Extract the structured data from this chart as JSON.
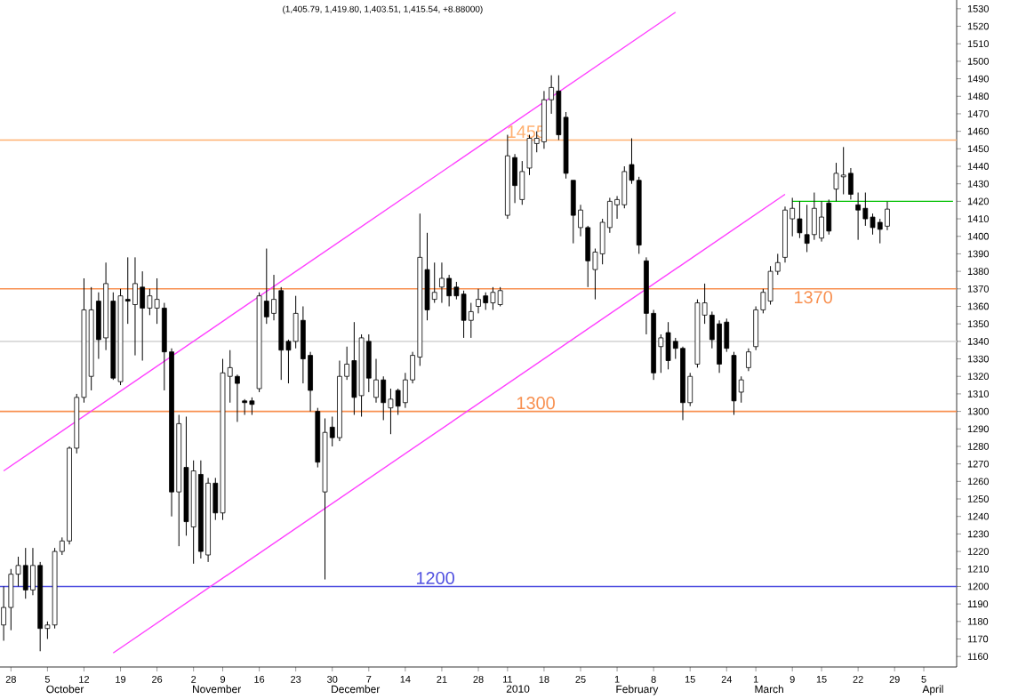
{
  "chart_data": {
    "type": "candlestick",
    "subtitle": "(1,405.79, 1,419.80, 1,403.51, 1,415.54, +8.88000)",
    "categories": [
      null,
      "28",
      null,
      null,
      null,
      null,
      "5",
      null,
      null,
      null,
      null,
      "12",
      null,
      null,
      null,
      null,
      "19",
      null,
      null,
      null,
      null,
      "26",
      null,
      null,
      null,
      null,
      "2",
      null,
      null,
      null,
      "9",
      null,
      null,
      null,
      null,
      "16",
      null,
      null,
      null,
      null,
      "23",
      null,
      null,
      null,
      null,
      "30",
      null,
      null,
      null,
      null,
      "7",
      null,
      null,
      null,
      null,
      "14",
      null,
      null,
      null,
      null,
      "21",
      null,
      null,
      null,
      null,
      "28",
      null,
      null,
      null,
      "11",
      null,
      null,
      null,
      null,
      "18",
      null,
      null,
      null,
      null,
      "25",
      null,
      null,
      null,
      null,
      "1",
      null,
      null,
      null,
      null,
      "8",
      null,
      null,
      null,
      null,
      "15",
      null,
      null,
      null,
      null,
      "24",
      null,
      null,
      null,
      "1",
      null,
      null,
      null,
      null,
      "9",
      null,
      null,
      null,
      "15",
      null,
      null,
      null,
      null,
      "22",
      null,
      null,
      null,
      null,
      "29",
      null,
      null,
      null,
      "5",
      null,
      null,
      null,
      null
    ],
    "ohlc": [
      [
        1178,
        1200,
        1169,
        1188
      ],
      [
        1188,
        1210,
        1175,
        1207
      ],
      [
        1207,
        1217,
        1200,
        1212
      ],
      [
        1212,
        1222,
        1193,
        1198
      ],
      [
        1198,
        1222,
        1195,
        1212
      ],
      [
        1212,
        1214,
        1163,
        1176
      ],
      [
        1176,
        1180,
        1170,
        1178
      ],
      [
        1178,
        1222,
        1176,
        1220
      ],
      [
        1220,
        1228,
        1218,
        1226
      ],
      [
        1226,
        1280,
        1224,
        1279
      ],
      [
        1279,
        1310,
        1276,
        1308
      ],
      [
        1308,
        1376,
        1305,
        1358
      ],
      [
        1320,
        1371,
        1312,
        1358
      ],
      [
        1363,
        1368,
        1330,
        1341
      ],
      [
        1342,
        1385,
        1335,
        1373
      ],
      [
        1363,
        1368,
        1318,
        1319
      ],
      [
        1317,
        1370,
        1315,
        1366
      ],
      [
        1364,
        1388,
        1350,
        1363
      ],
      [
        1361,
        1388,
        1332,
        1373
      ],
      [
        1371,
        1380,
        1329,
        1359
      ],
      [
        1359,
        1370,
        1355,
        1366
      ],
      [
        1359,
        1376,
        1350,
        1364
      ],
      [
        1359,
        1362,
        1312,
        1334
      ],
      [
        1334,
        1336,
        1240,
        1254
      ],
      [
        1254,
        1298,
        1223,
        1293
      ],
      [
        1268,
        1297,
        1229,
        1237
      ],
      [
        1234,
        1272,
        1213,
        1266
      ],
      [
        1264,
        1272,
        1216,
        1220
      ],
      [
        1218,
        1262,
        1214,
        1259
      ],
      [
        1259,
        1262,
        1238,
        1242
      ],
      [
        1242,
        1330,
        1238,
        1322
      ],
      [
        1320,
        1335,
        1305,
        1325
      ],
      [
        1320,
        1321,
        1294,
        1316
      ],
      [
        1306,
        1307,
        1298,
        1305
      ],
      [
        1306,
        1308,
        1298,
        1304
      ],
      [
        1313,
        1368,
        1311,
        1366
      ],
      [
        1363,
        1393,
        1350,
        1354
      ],
      [
        1356,
        1378,
        1352,
        1364
      ],
      [
        1369,
        1371,
        1318,
        1335
      ],
      [
        1340,
        1341,
        1316,
        1335
      ],
      [
        1340,
        1366,
        1336,
        1356
      ],
      [
        1352,
        1360,
        1316,
        1330
      ],
      [
        1332,
        1334,
        1300,
        1312
      ],
      [
        1300,
        1302,
        1268,
        1271
      ],
      [
        1254,
        1296,
        1204,
        1288
      ],
      [
        1291,
        1297,
        1280,
        1285
      ],
      [
        1285,
        1329,
        1283,
        1320
      ],
      [
        1320,
        1337,
        1318,
        1327
      ],
      [
        1329,
        1351,
        1298,
        1308
      ],
      [
        1309,
        1344,
        1297,
        1342
      ],
      [
        1340,
        1344,
        1311,
        1319
      ],
      [
        1308,
        1330,
        1305,
        1318
      ],
      [
        1318,
        1320,
        1295,
        1305
      ],
      [
        1302,
        1313,
        1287,
        1307
      ],
      [
        1312,
        1313,
        1298,
        1303
      ],
      [
        1305,
        1322,
        1302,
        1318
      ],
      [
        1318,
        1334,
        1316,
        1332
      ],
      [
        1331,
        1413,
        1326,
        1388
      ],
      [
        1381,
        1402,
        1352,
        1358
      ],
      [
        1364,
        1385,
        1362,
        1368
      ],
      [
        1371,
        1385,
        1362,
        1376
      ],
      [
        1376,
        1378,
        1360,
        1366
      ],
      [
        1371,
        1374,
        1364,
        1366
      ],
      [
        1367,
        1369,
        1342,
        1352
      ],
      [
        1352,
        1362,
        1342,
        1357
      ],
      [
        1360,
        1370,
        1356,
        1364
      ],
      [
        1366,
        1368,
        1358,
        1362
      ],
      [
        1362,
        1371,
        1358,
        1368
      ],
      [
        1361,
        1371,
        1360,
        1369
      ],
      [
        1412,
        1458,
        1410,
        1446
      ],
      [
        1445,
        1447,
        1419,
        1429
      ],
      [
        1421,
        1443,
        1418,
        1437
      ],
      [
        1439,
        1458,
        1435,
        1456
      ],
      [
        1453,
        1460,
        1448,
        1456
      ],
      [
        1454,
        1483,
        1450,
        1478
      ],
      [
        1478,
        1492,
        1470,
        1485
      ],
      [
        1483,
        1492,
        1455,
        1458
      ],
      [
        1468,
        1471,
        1433,
        1436
      ],
      [
        1432,
        1432,
        1396,
        1412
      ],
      [
        1405,
        1418,
        1400,
        1415
      ],
      [
        1405,
        1406,
        1371,
        1386
      ],
      [
        1381,
        1393,
        1364,
        1391
      ],
      [
        1390,
        1410,
        1384,
        1408
      ],
      [
        1405,
        1422,
        1402,
        1420
      ],
      [
        1418,
        1423,
        1410,
        1421
      ],
      [
        1418,
        1440,
        1416,
        1437
      ],
      [
        1441,
        1456,
        1430,
        1432
      ],
      [
        1432,
        1434,
        1390,
        1395
      ],
      [
        1386,
        1388,
        1344,
        1356
      ],
      [
        1356,
        1358,
        1318,
        1322
      ],
      [
        1337,
        1344,
        1322,
        1342
      ],
      [
        1345,
        1351,
        1324,
        1329
      ],
      [
        1340,
        1342,
        1330,
        1336
      ],
      [
        1336,
        1337,
        1295,
        1305
      ],
      [
        1305,
        1322,
        1303,
        1320
      ],
      [
        1327,
        1364,
        1325,
        1362
      ],
      [
        1355,
        1373,
        1350,
        1362
      ],
      [
        1355,
        1357,
        1336,
        1341
      ],
      [
        1350,
        1352,
        1322,
        1327
      ],
      [
        1351,
        1353,
        1334,
        1336
      ],
      [
        1332,
        1334,
        1298,
        1306
      ],
      [
        1311,
        1320,
        1305,
        1318
      ],
      [
        1325,
        1336,
        1323,
        1334
      ],
      [
        1337,
        1360,
        1335,
        1358
      ],
      [
        1358,
        1370,
        1356,
        1368
      ],
      [
        1363,
        1383,
        1361,
        1380
      ],
      [
        1380,
        1390,
        1378,
        1385
      ],
      [
        1388,
        1417,
        1385,
        1415
      ],
      [
        1410,
        1422,
        1400,
        1416
      ],
      [
        1410,
        1420,
        1399,
        1402
      ],
      [
        1401,
        1418,
        1391,
        1396
      ],
      [
        1401,
        1425,
        1398,
        1416
      ],
      [
        1399,
        1420,
        1397,
        1411
      ],
      [
        1419,
        1421,
        1401,
        1403
      ],
      [
        1427,
        1442,
        1420,
        1436
      ],
      [
        1434,
        1451,
        1424,
        1435
      ],
      [
        1436,
        1439,
        1421,
        1424
      ],
      [
        1418,
        1425,
        1398,
        1415
      ],
      [
        1416,
        1425,
        1406,
        1410
      ],
      [
        1411,
        1413,
        1401,
        1405
      ],
      [
        1408,
        1410,
        1396,
        1404
      ],
      [
        1405.79,
        1419.8,
        1403.51,
        1415.54
      ],
      null,
      null,
      null,
      null,
      null,
      null,
      null,
      null,
      null
    ],
    "series": [
      {
        "type": "line",
        "color": "#ff40ff",
        "values": [
          1266,
          null,
          null,
          null,
          null,
          null,
          null,
          null,
          null,
          null,
          null,
          null,
          null,
          null,
          null,
          null,
          null,
          null,
          null,
          null,
          null,
          null,
          null,
          null,
          null,
          null,
          null,
          null,
          null,
          null,
          null,
          null,
          null,
          null,
          null,
          null,
          null,
          null,
          null,
          null,
          null,
          null,
          null,
          null,
          null,
          null,
          null,
          null,
          null,
          null,
          null,
          null,
          null,
          null,
          null,
          null,
          null,
          null,
          null,
          null,
          null,
          null,
          null,
          null,
          null,
          null,
          null,
          null,
          null,
          null,
          null,
          null,
          null,
          null,
          null,
          null,
          null,
          null,
          null,
          null,
          null,
          null,
          null,
          null,
          null,
          null,
          null,
          null,
          null,
          null,
          null,
          null,
          1528,
          null,
          null,
          null,
          null,
          null,
          null,
          null,
          null,
          null,
          null,
          null,
          null,
          null,
          null,
          null,
          null,
          null,
          null,
          null,
          null,
          null,
          null,
          null,
          null,
          null,
          null,
          null,
          null,
          null,
          null,
          null,
          null,
          null,
          null,
          null,
          null,
          null,
          null
        ]
      },
      {
        "type": "line",
        "color": "#ff40ff",
        "values": [
          null,
          null,
          null,
          null,
          null,
          null,
          null,
          null,
          null,
          null,
          null,
          null,
          null,
          null,
          null,
          1162,
          null,
          null,
          null,
          null,
          null,
          null,
          null,
          null,
          null,
          null,
          null,
          null,
          null,
          null,
          null,
          null,
          null,
          null,
          null,
          null,
          null,
          null,
          null,
          null,
          null,
          null,
          null,
          null,
          null,
          null,
          null,
          null,
          null,
          null,
          null,
          null,
          null,
          null,
          null,
          null,
          null,
          null,
          null,
          null,
          null,
          null,
          null,
          null,
          null,
          null,
          null,
          null,
          null,
          null,
          null,
          null,
          null,
          null,
          null,
          null,
          null,
          null,
          null,
          null,
          null,
          null,
          null,
          null,
          null,
          null,
          null,
          null,
          null,
          null,
          null,
          null,
          null,
          null,
          null,
          null,
          null,
          null,
          null,
          null,
          null,
          null,
          null,
          null,
          null,
          null,
          null,
          1424,
          null,
          null,
          null,
          null,
          null,
          null,
          null,
          null,
          null,
          null,
          null,
          null,
          null,
          null,
          null,
          null,
          null,
          null,
          null,
          null,
          null,
          null,
          null
        ]
      },
      {
        "type": "line",
        "color": "#00c000",
        "values": [
          null,
          null,
          null,
          null,
          null,
          null,
          null,
          null,
          null,
          null,
          null,
          null,
          null,
          null,
          null,
          null,
          null,
          null,
          null,
          null,
          null,
          null,
          null,
          null,
          null,
          null,
          null,
          null,
          null,
          null,
          null,
          null,
          null,
          null,
          null,
          null,
          null,
          null,
          null,
          null,
          null,
          null,
          null,
          null,
          null,
          null,
          null,
          null,
          null,
          null,
          null,
          null,
          null,
          null,
          null,
          null,
          null,
          null,
          null,
          null,
          null,
          null,
          null,
          null,
          null,
          null,
          null,
          null,
          null,
          null,
          null,
          null,
          null,
          null,
          null,
          null,
          null,
          null,
          null,
          null,
          null,
          null,
          null,
          null,
          null,
          null,
          null,
          null,
          null,
          null,
          null,
          null,
          null,
          null,
          null,
          null,
          null,
          null,
          null,
          null,
          null,
          null,
          null,
          null,
          null,
          null,
          null,
          null,
          1420,
          null,
          null,
          null,
          null,
          null,
          null,
          null,
          null,
          null,
          null,
          null,
          null,
          null,
          null,
          null,
          null,
          null,
          null,
          null,
          null,
          null,
          1420
        ]
      }
    ],
    "ylim": [
      1154,
      1535
    ],
    "yticks": [
      1160,
      1170,
      1180,
      1190,
      1200,
      1210,
      1220,
      1230,
      1240,
      1250,
      1260,
      1270,
      1280,
      1290,
      1300,
      1310,
      1320,
      1330,
      1340,
      1350,
      1360,
      1370,
      1380,
      1390,
      1400,
      1410,
      1420,
      1430,
      1440,
      1450,
      1460,
      1470,
      1480,
      1490,
      1500,
      1510,
      1520,
      1530
    ],
    "ref_lines": [
      {
        "axis": "y",
        "value": 1455,
        "label": "1455",
        "color": "#ffb070"
      },
      {
        "axis": "y",
        "value": 1370,
        "label": "1370",
        "color": "#f89050"
      },
      {
        "axis": "y",
        "value": 1340,
        "color": "#d8d8d8"
      },
      {
        "axis": "y",
        "value": 1300,
        "label": "1300",
        "color": "#f89050"
      },
      {
        "axis": "y",
        "value": 1200,
        "label": "1200",
        "color": "#5050e0"
      }
    ],
    "annotations": [
      "October",
      "November",
      "December",
      "2010",
      "February",
      "March",
      "April"
    ]
  }
}
